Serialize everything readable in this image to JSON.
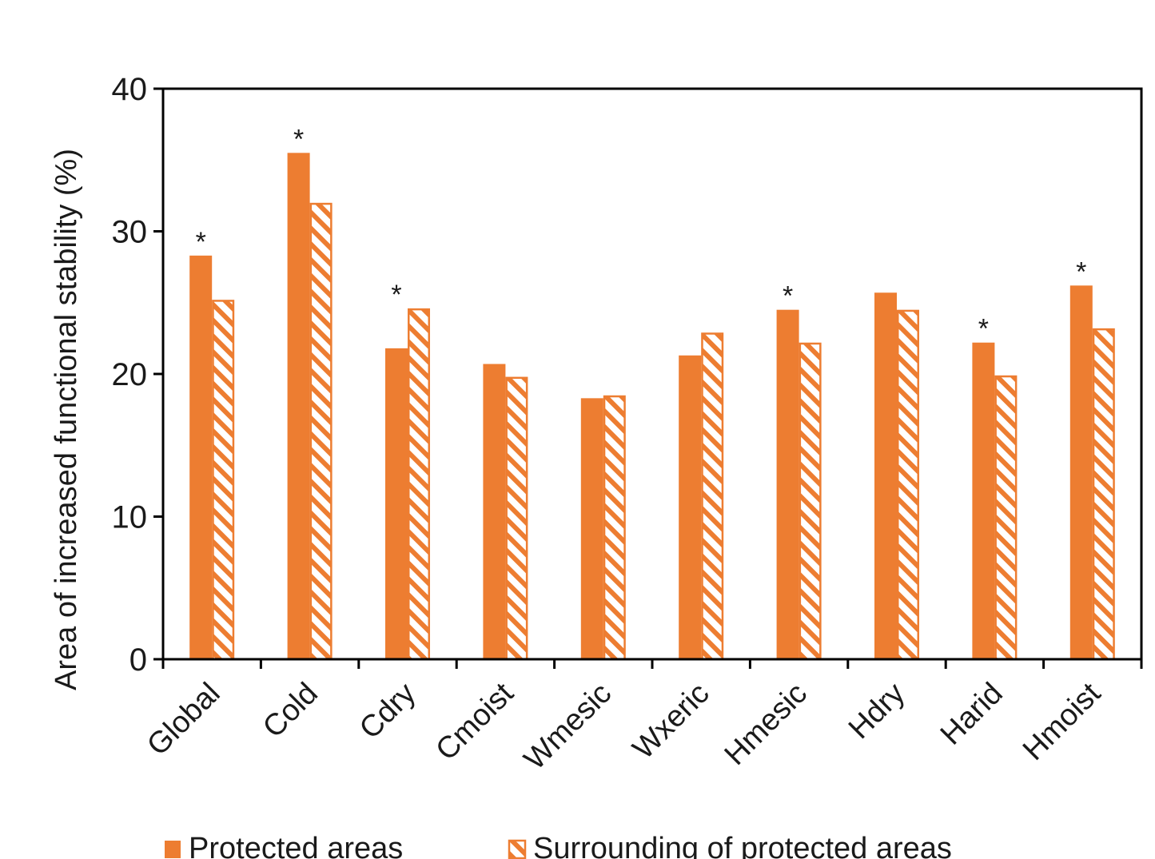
{
  "chart_data": {
    "type": "bar",
    "title": "",
    "xlabel": "",
    "ylabel": "Area of increased functional stability (%)",
    "ylim": [
      0,
      40
    ],
    "yticks": [
      0,
      10,
      20,
      30,
      40
    ],
    "categories": [
      "Global",
      "Cold",
      "Cdry",
      "Cmoist",
      "Wmesic",
      "Wxeric",
      "Hmesic",
      "Hdry",
      "Harid",
      "Hmoist"
    ],
    "series": [
      {
        "name": "Protected areas",
        "style": "solid",
        "values": [
          28.3,
          35.5,
          21.8,
          20.7,
          18.3,
          21.3,
          24.5,
          25.7,
          22.2,
          26.2
        ]
      },
      {
        "name": "Surrounding of protected areas",
        "style": "hatched",
        "values": [
          25.2,
          32.0,
          24.6,
          19.8,
          18.5,
          22.9,
          22.2,
          24.5,
          19.9,
          23.2
        ]
      }
    ],
    "significance_marker": "*",
    "significant_categories": [
      "Global",
      "Cold",
      "Cdry",
      "Hmesic",
      "Harid",
      "Hmoist"
    ],
    "legend_position": "bottom",
    "colors": {
      "bar": "#ED7D31",
      "axis": "#000000",
      "hatch_bg": "#ffffff"
    }
  }
}
